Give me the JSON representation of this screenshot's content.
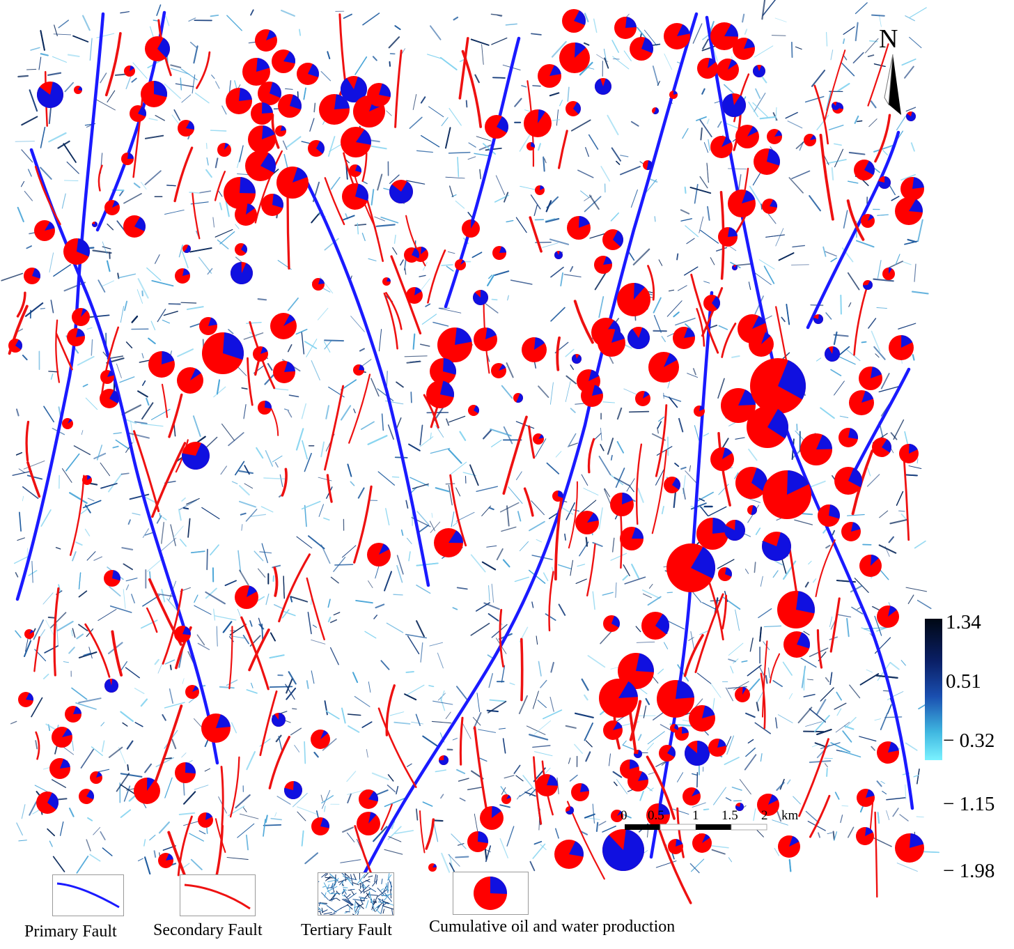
{
  "north_label": "N",
  "colorbar": {
    "ticks": [
      "1.34",
      "0.51",
      "− 0.32",
      "− 1.15",
      "− 1.98"
    ],
    "colors": [
      "#000814",
      "#0a1f66",
      "#1a4fb0",
      "#3fb6e0",
      "#7af2ff"
    ]
  },
  "scale_bar": {
    "ticks": [
      "0",
      "0.5",
      "1",
      "1.5",
      "2"
    ],
    "unit": "km"
  },
  "legend": {
    "primary_fault": "Primary Fault",
    "secondary_fault": "Secondary Fault",
    "tertiary_fault": "Tertiary Fault",
    "production": "Cumulative oil and water production"
  },
  "colors": {
    "primary_fault": "#1a1aff",
    "secondary_fault": "#ee1111",
    "oil": "#ff0000",
    "water": "#1010e0",
    "tertiary_dark": "#0b2a5c",
    "tertiary_light": "#4aa6d8"
  }
}
